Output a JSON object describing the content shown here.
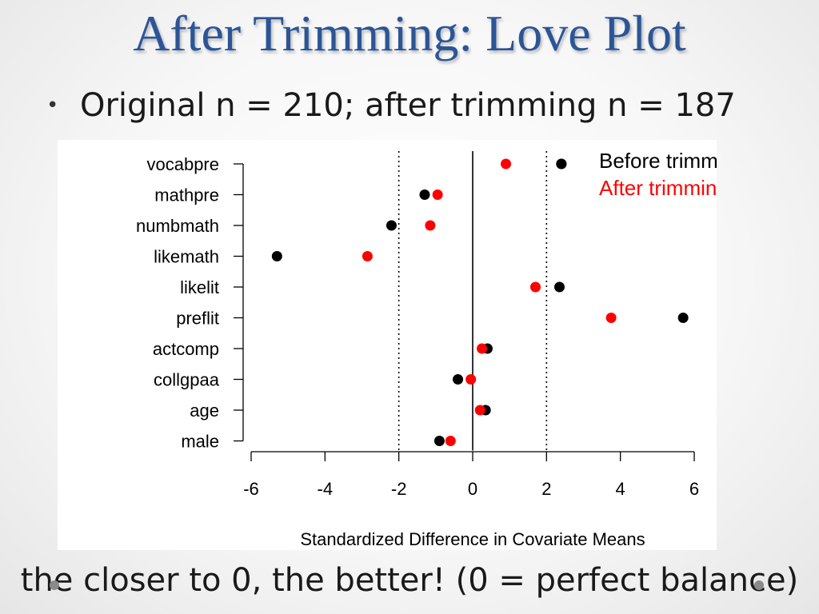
{
  "slide": {
    "title": "After Trimming: Love Plot",
    "bullet": "Original n = 210; after trimming n = 187",
    "footer": "the closer to 0, the better! (0 = perfect balance)"
  },
  "chart_data": {
    "type": "scatter",
    "xlabel": "Standardized Difference in Covariate Means",
    "xlim": [
      -6,
      6
    ],
    "xticks": [
      -6,
      -4,
      -2,
      0,
      2,
      4,
      6
    ],
    "reference_lines": [
      -2,
      0,
      2
    ],
    "categories": [
      "vocabpre",
      "mathpre",
      "numbmath",
      "likemath",
      "likelit",
      "preflit",
      "actcomp",
      "collgpaa",
      "age",
      "male"
    ],
    "series": [
      {
        "name": "Before trimming",
        "color": "#000000",
        "values": [
          2.4,
          -1.3,
          -2.2,
          -5.3,
          2.35,
          5.7,
          0.4,
          -0.4,
          0.35,
          -0.9
        ]
      },
      {
        "name": "After trimming",
        "color": "#ff0000",
        "values": [
          0.9,
          -0.95,
          -1.15,
          -2.85,
          1.7,
          3.75,
          0.25,
          -0.05,
          0.2,
          -0.6
        ]
      }
    ],
    "legend_position": "top-right"
  }
}
